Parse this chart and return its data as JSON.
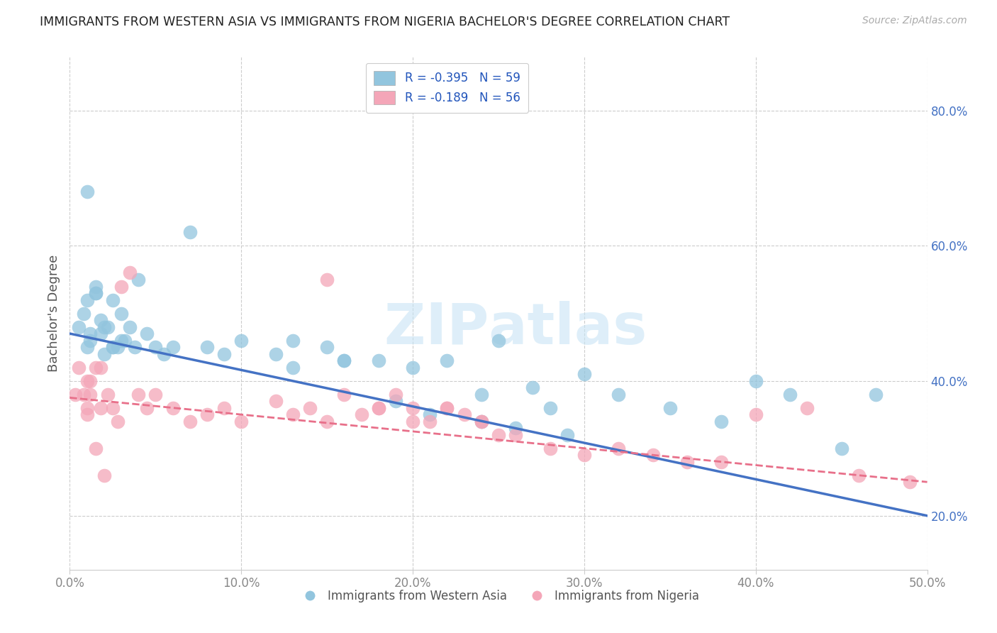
{
  "title": "IMMIGRANTS FROM WESTERN ASIA VS IMMIGRANTS FROM NIGERIA BACHELOR'S DEGREE CORRELATION CHART",
  "source": "Source: ZipAtlas.com",
  "xlabel_legend1": "Immigrants from Western Asia",
  "xlabel_legend2": "Immigrants from Nigeria",
  "ylabel": "Bachelor's Degree",
  "legend_R1": "R = -0.395",
  "legend_N1": "N = 59",
  "legend_R2": "R = -0.189",
  "legend_N2": "N = 56",
  "xlim": [
    0.0,
    0.5
  ],
  "ylim": [
    0.12,
    0.88
  ],
  "xticks": [
    0.0,
    0.1,
    0.2,
    0.3,
    0.4,
    0.5
  ],
  "yticks": [
    0.2,
    0.4,
    0.6,
    0.8
  ],
  "color_blue": "#92C5DE",
  "color_pink": "#F4A6B8",
  "trendline_blue": "#4472C4",
  "trendline_pink": "#E8708A",
  "blue_trend_start_y": 0.47,
  "blue_trend_end_y": 0.2,
  "pink_trend_start_y": 0.375,
  "pink_trend_end_y": 0.25,
  "watermark_text": "ZIP​atlas",
  "blue_x": [
    0.005,
    0.008,
    0.01,
    0.012,
    0.01,
    0.015,
    0.012,
    0.018,
    0.02,
    0.01,
    0.015,
    0.022,
    0.018,
    0.025,
    0.02,
    0.015,
    0.025,
    0.03,
    0.025,
    0.03,
    0.028,
    0.035,
    0.032,
    0.04,
    0.038,
    0.045,
    0.05,
    0.055,
    0.06,
    0.07,
    0.08,
    0.09,
    0.1,
    0.12,
    0.13,
    0.15,
    0.16,
    0.18,
    0.2,
    0.22,
    0.24,
    0.25,
    0.27,
    0.28,
    0.3,
    0.32,
    0.35,
    0.38,
    0.4,
    0.42,
    0.13,
    0.16,
    0.19,
    0.21,
    0.24,
    0.26,
    0.29,
    0.45,
    0.47
  ],
  "blue_y": [
    0.48,
    0.5,
    0.52,
    0.47,
    0.45,
    0.53,
    0.46,
    0.49,
    0.44,
    0.68,
    0.53,
    0.48,
    0.47,
    0.45,
    0.48,
    0.54,
    0.45,
    0.5,
    0.52,
    0.46,
    0.45,
    0.48,
    0.46,
    0.55,
    0.45,
    0.47,
    0.45,
    0.44,
    0.45,
    0.62,
    0.45,
    0.44,
    0.46,
    0.44,
    0.46,
    0.45,
    0.43,
    0.43,
    0.42,
    0.43,
    0.38,
    0.46,
    0.39,
    0.36,
    0.41,
    0.38,
    0.36,
    0.34,
    0.4,
    0.38,
    0.42,
    0.43,
    0.37,
    0.35,
    0.34,
    0.33,
    0.32,
    0.3,
    0.38
  ],
  "pink_x": [
    0.003,
    0.005,
    0.008,
    0.01,
    0.012,
    0.01,
    0.015,
    0.012,
    0.018,
    0.01,
    0.015,
    0.02,
    0.018,
    0.022,
    0.025,
    0.028,
    0.03,
    0.035,
    0.04,
    0.045,
    0.05,
    0.06,
    0.07,
    0.08,
    0.09,
    0.1,
    0.12,
    0.13,
    0.14,
    0.15,
    0.16,
    0.17,
    0.18,
    0.19,
    0.2,
    0.21,
    0.22,
    0.23,
    0.24,
    0.25,
    0.15,
    0.18,
    0.2,
    0.22,
    0.24,
    0.26,
    0.28,
    0.3,
    0.32,
    0.34,
    0.36,
    0.38,
    0.4,
    0.43,
    0.46,
    0.49
  ],
  "pink_y": [
    0.38,
    0.42,
    0.38,
    0.36,
    0.4,
    0.35,
    0.42,
    0.38,
    0.36,
    0.4,
    0.3,
    0.26,
    0.42,
    0.38,
    0.36,
    0.34,
    0.54,
    0.56,
    0.38,
    0.36,
    0.38,
    0.36,
    0.34,
    0.35,
    0.36,
    0.34,
    0.37,
    0.35,
    0.36,
    0.34,
    0.38,
    0.35,
    0.36,
    0.38,
    0.36,
    0.34,
    0.36,
    0.35,
    0.34,
    0.32,
    0.55,
    0.36,
    0.34,
    0.36,
    0.34,
    0.32,
    0.3,
    0.29,
    0.3,
    0.29,
    0.28,
    0.28,
    0.35,
    0.36,
    0.26,
    0.25
  ]
}
